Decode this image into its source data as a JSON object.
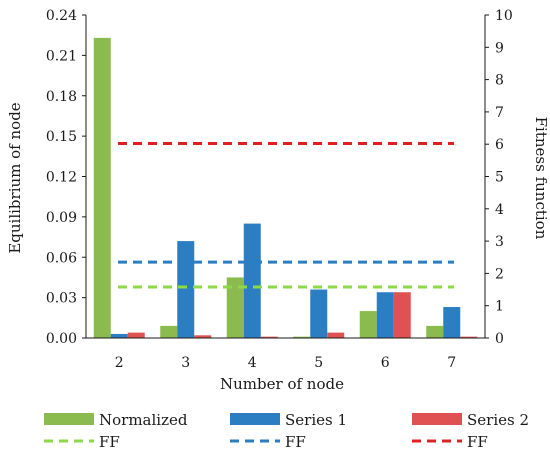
{
  "chart_data": {
    "type": "bar",
    "xlabel": "Number of node",
    "ylabel": "Equilibrium of node",
    "y2label": "Fitness function",
    "categories": [
      "2",
      "3",
      "4",
      "5",
      "6",
      "7"
    ],
    "ylim": [
      0,
      0.24
    ],
    "y2lim": [
      0,
      10
    ],
    "yticks": [
      "0.00",
      "0.03",
      "0.06",
      "0.09",
      "0.12",
      "0.15",
      "0.18",
      "0.21",
      "0.24"
    ],
    "y2ticks": [
      "0",
      "1",
      "2",
      "3",
      "4",
      "5",
      "6",
      "7",
      "8",
      "9",
      "10"
    ],
    "grid": false,
    "legend_position": "bottom",
    "series": [
      {
        "name": "Normalized",
        "kind": "bar",
        "axis": "left",
        "color": "#8bbb4f",
        "values": [
          0.223,
          0.009,
          0.045,
          0.001,
          0.02,
          0.009
        ]
      },
      {
        "name": "Series 1",
        "kind": "bar",
        "axis": "left",
        "color": "#2a7ec1",
        "values": [
          0.003,
          0.072,
          0.085,
          0.036,
          0.034,
          0.023
        ]
      },
      {
        "name": "Series 2",
        "kind": "bar",
        "axis": "left",
        "color": "#e05252",
        "values": [
          0.004,
          0.002,
          0.001,
          0.004,
          0.034,
          0.001
        ]
      },
      {
        "name": "FF",
        "kind": "line",
        "dashed": true,
        "axis": "right",
        "color": "#8ed94a",
        "value": 1.58
      },
      {
        "name": "FF",
        "kind": "line",
        "dashed": true,
        "axis": "right",
        "color": "#2a7ec1",
        "value": 2.35
      },
      {
        "name": "FF",
        "kind": "line",
        "dashed": true,
        "axis": "right",
        "color": "#e02020",
        "value": 6.02
      }
    ]
  }
}
